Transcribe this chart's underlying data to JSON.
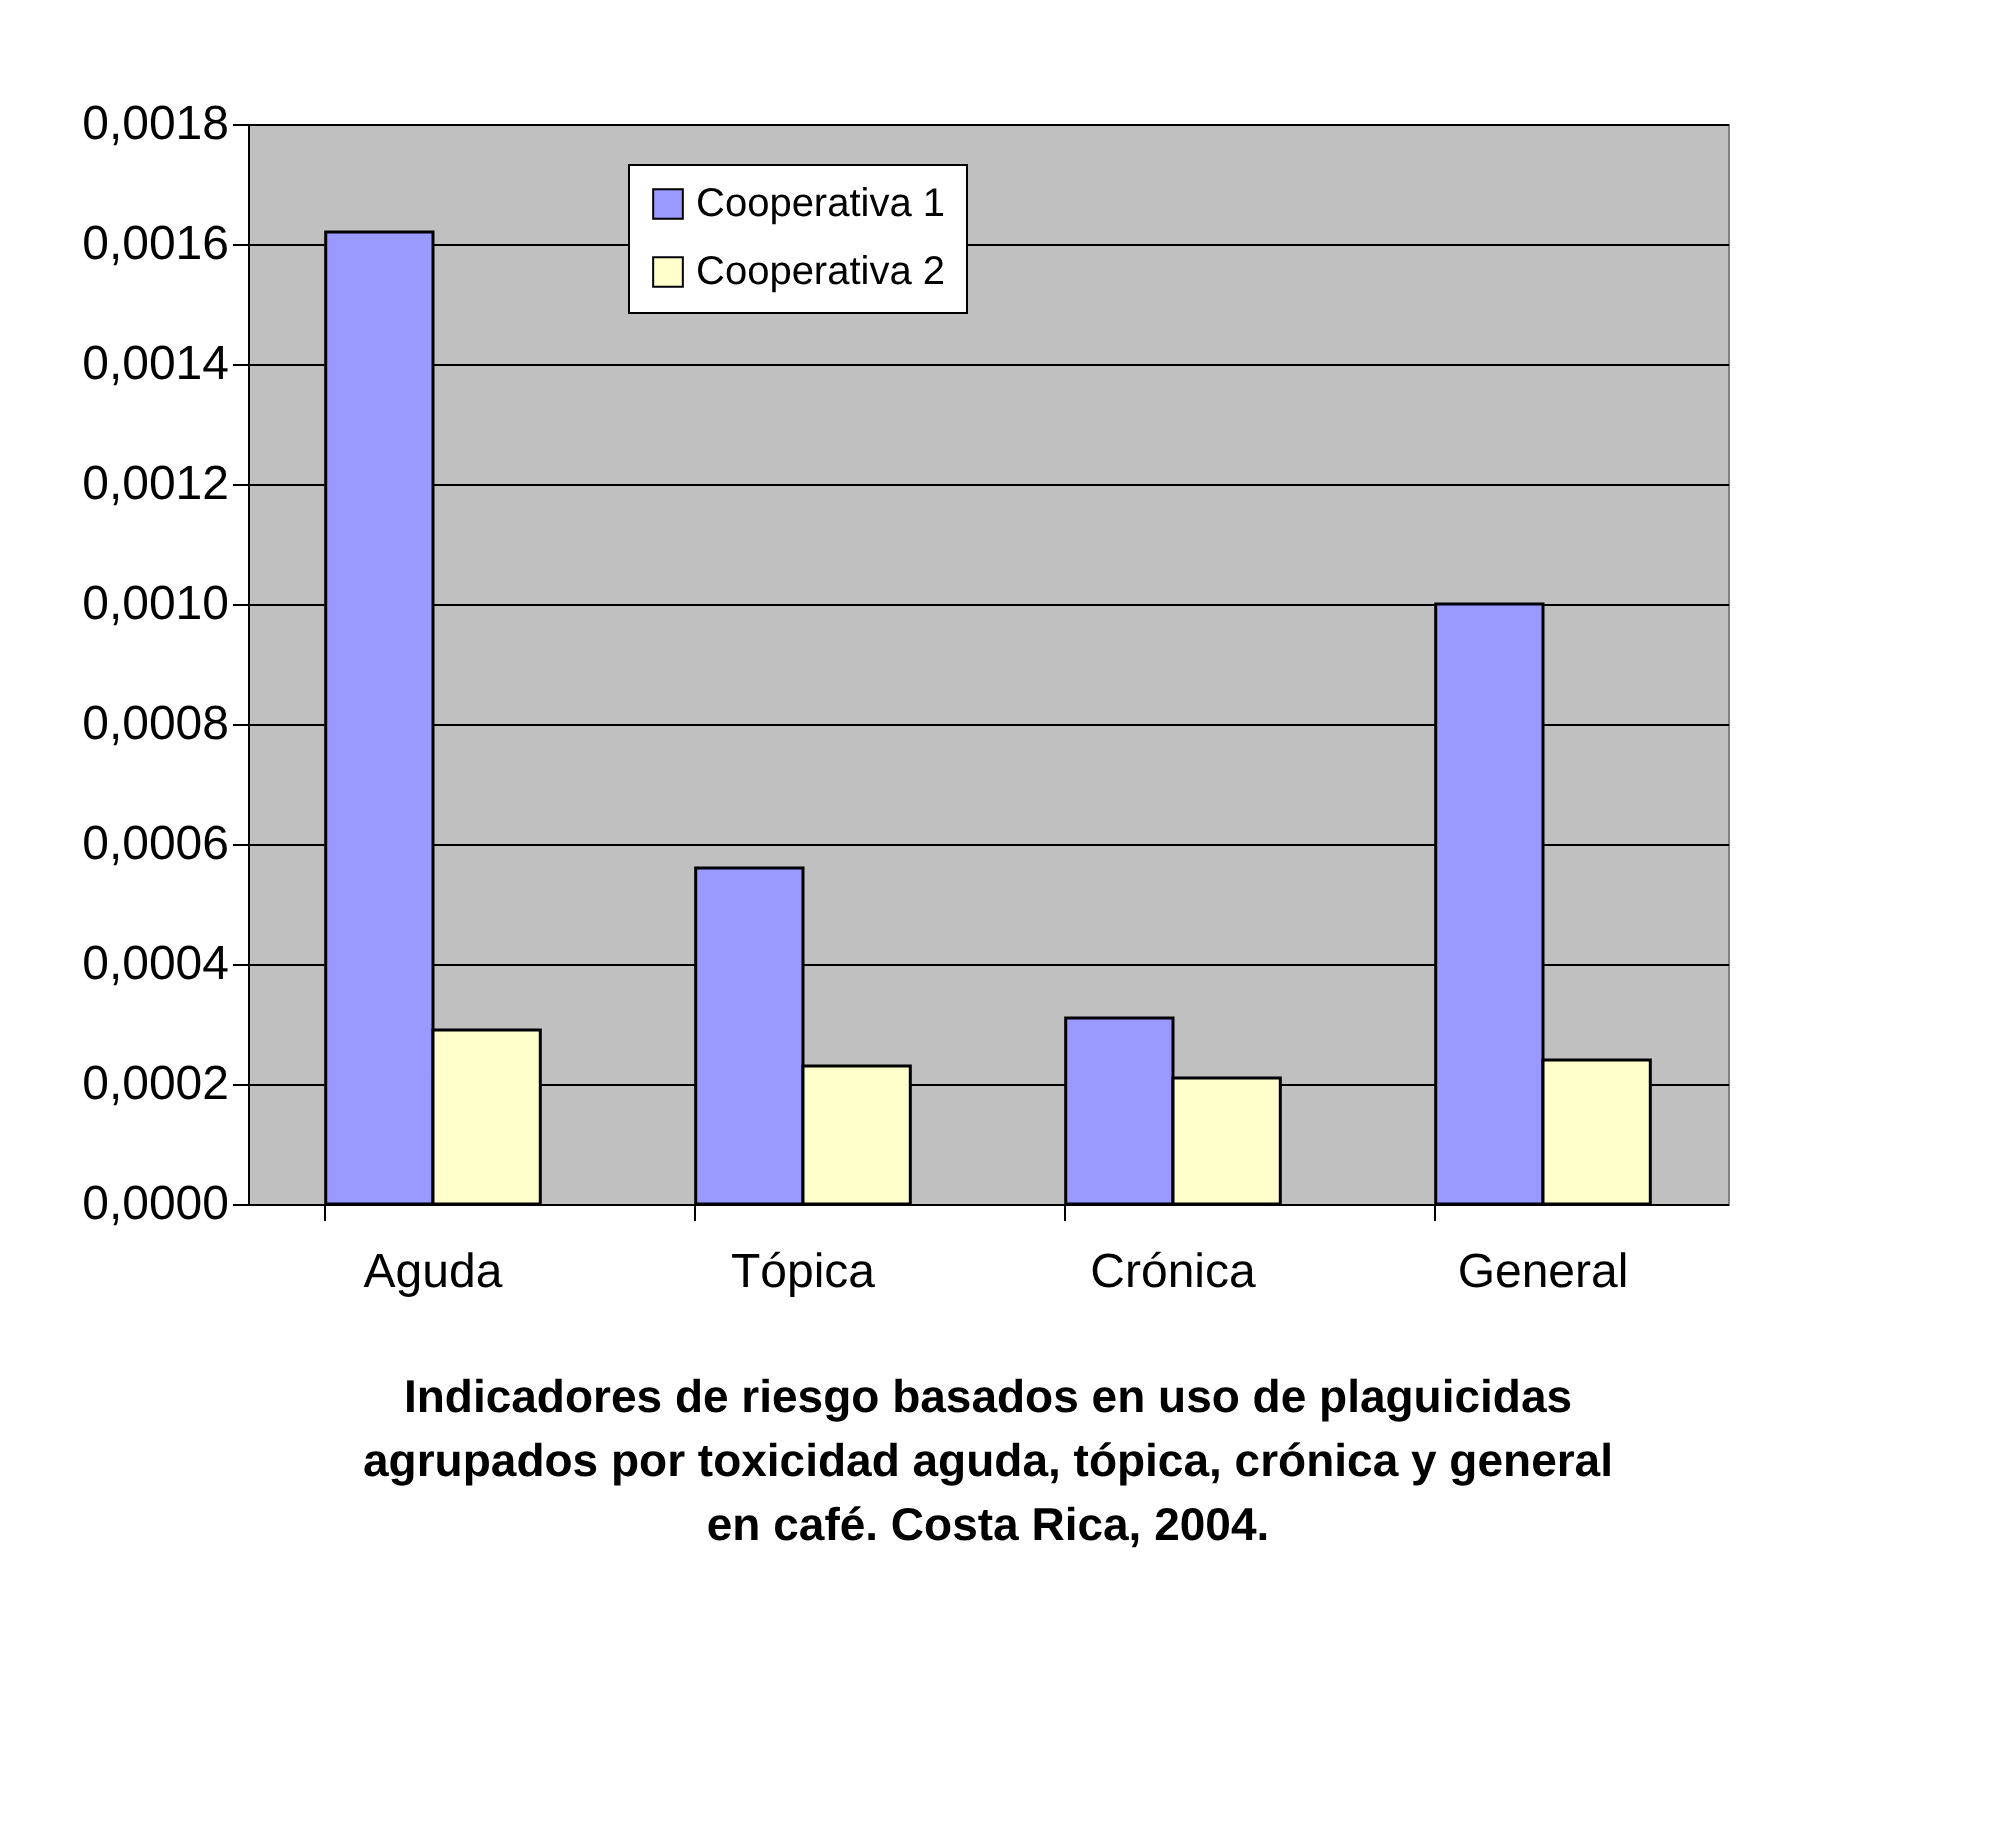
{
  "chart_data": {
    "type": "bar",
    "title": "Indicadores de riesgo basados en uso de plaguicidas agrupados por toxicidad aguda, tópica, crónica y general en café. Costa Rica, 2004.",
    "categories": [
      "Aguda",
      "Tópica",
      "Crónica",
      "General"
    ],
    "series": [
      {
        "name": "Cooperativa 1",
        "color": "#9999ff",
        "values": [
          0.00162,
          0.00056,
          0.00031,
          0.001
        ]
      },
      {
        "name": "Cooperativa 2",
        "color": "#ffffcc",
        "values": [
          0.00029,
          0.00023,
          0.00021,
          0.00024
        ]
      }
    ],
    "ylim": [
      0,
      0.0018
    ],
    "yticks": [
      {
        "value": 0,
        "label": "0,0000"
      },
      {
        "value": 0.0002,
        "label": "0,0002"
      },
      {
        "value": 0.0004,
        "label": "0,0004"
      },
      {
        "value": 0.0006,
        "label": "0,0006"
      },
      {
        "value": 0.0008,
        "label": "0,0008"
      },
      {
        "value": 0.001,
        "label": "0,0010"
      },
      {
        "value": 0.0012,
        "label": "0,0012"
      },
      {
        "value": 0.0014,
        "label": "0,0014"
      },
      {
        "value": 0.0016,
        "label": "0,0016"
      },
      {
        "value": 0.0018,
        "label": "0,0018"
      }
    ],
    "grid": "y",
    "legend": "top"
  }
}
